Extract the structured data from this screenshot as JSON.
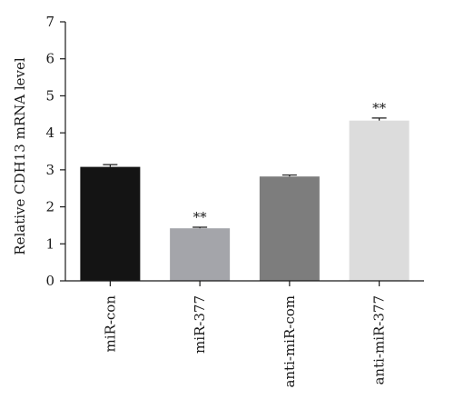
{
  "chart_data": {
    "type": "bar",
    "categories": [
      "miR-con",
      "miR-377",
      "anti-miR-com",
      "anti-miR-377"
    ],
    "values": [
      3.08,
      1.42,
      2.82,
      4.33
    ],
    "errors": [
      0.06,
      0.03,
      0.04,
      0.07
    ],
    "significance": [
      "",
      "**",
      "",
      "**"
    ],
    "colors": [
      "#141414",
      "#a4a5aa",
      "#7d7d7d",
      "#dcdcdc"
    ],
    "ylabel": "Relative CDH13 mRNA level",
    "xlabel": "",
    "ylim": [
      0,
      7
    ],
    "yticks": [
      0,
      1,
      2,
      3,
      4,
      5,
      6,
      7
    ],
    "grid": false,
    "legend": "none"
  }
}
